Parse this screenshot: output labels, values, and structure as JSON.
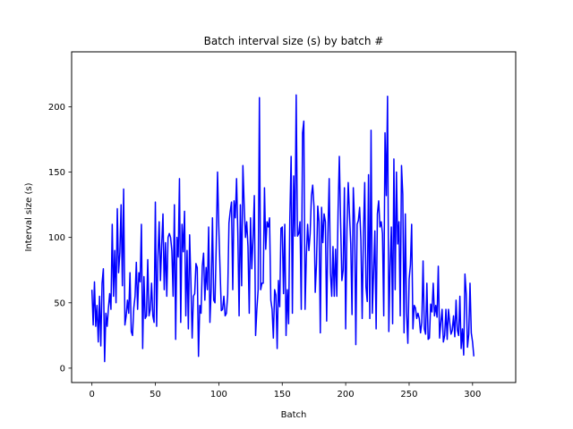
{
  "colors": {
    "line": "#0000ff",
    "axes": "#000000",
    "background": "#ffffff"
  },
  "chart_data": {
    "type": "line",
    "title": "Batch interval size (s) by batch #",
    "xlabel": "Batch",
    "ylabel": "Interval size (s)",
    "xlim": [
      -16,
      334
    ],
    "ylim": [
      -11,
      242
    ],
    "xticks": [
      0,
      50,
      100,
      150,
      200,
      250,
      300
    ],
    "yticks": [
      0,
      50,
      100,
      150,
      200
    ],
    "grid": false,
    "legend": false,
    "series": [
      {
        "values": [
          60,
          33,
          66,
          32,
          48,
          20,
          55,
          17,
          65,
          76,
          5,
          42,
          32,
          46,
          57,
          45,
          110,
          55,
          90,
          50,
          122,
          73,
          88,
          125,
          63,
          137,
          33,
          40,
          52,
          42,
          73,
          28,
          25,
          46,
          55,
          81,
          45,
          73,
          66,
          110,
          15,
          70,
          38,
          40,
          83,
          40,
          45,
          65,
          40,
          35,
          127,
          32,
          85,
          112,
          67,
          95,
          118,
          60,
          96,
          55,
          100,
          103,
          100,
          90,
          55,
          125,
          22,
          100,
          85,
          145,
          35,
          110,
          89,
          120,
          40,
          90,
          30,
          102,
          66,
          23,
          55,
          57,
          80,
          77,
          9,
          48,
          42,
          78,
          88,
          52,
          77,
          60,
          108,
          35,
          61,
          115,
          52,
          50,
          95,
          150,
          108,
          75,
          44,
          45,
          55,
          40,
          42,
          56,
          111,
          120,
          127,
          60,
          128,
          115,
          145,
          103,
          40,
          125,
          63,
          155,
          125,
          100,
          112,
          93,
          42,
          115,
          76,
          100,
          132,
          25,
          45,
          60,
          207,
          60,
          65,
          65,
          138,
          91,
          112,
          108,
          115,
          52,
          45,
          23,
          60,
          56,
          15,
          67,
          47,
          107,
          108,
          57,
          110,
          25,
          60,
          34,
          115,
          162,
          42,
          147,
          101,
          209,
          101,
          103,
          112,
          45,
          180,
          189,
          45,
          86,
          110,
          90,
          103,
          132,
          140,
          124,
          58,
          80,
          124,
          112,
          27,
          123,
          96,
          118,
          112,
          36,
          103,
          145,
          73,
          55,
          93,
          55,
          91,
          55,
          120,
          162,
          112,
          67,
          75,
          138,
          30,
          106,
          142,
          118,
          95,
          41,
          138,
          112,
          18,
          110,
          113,
          123,
          98,
          38,
          103,
          142,
          62,
          51,
          148,
          38,
          182,
          42,
          73,
          105,
          30,
          118,
          128,
          108,
          112,
          103,
          40,
          180,
          132,
          208,
          28,
          78,
          108,
          34,
          160,
          60,
          150,
          95,
          112,
          40,
          155,
          133,
          27,
          118,
          42,
          19,
          68,
          79,
          110,
          30,
          48,
          46,
          38,
          42,
          38,
          27,
          35,
          82,
          30,
          26,
          65,
          22,
          23,
          49,
          43,
          65,
          40,
          48,
          39,
          78,
          23,
          35,
          45,
          20,
          25,
          45,
          22,
          45,
          35,
          26,
          29,
          40,
          24,
          52,
          29,
          25,
          55,
          15,
          30,
          10,
          72,
          57,
          16,
          26,
          65,
          27,
          20,
          9
        ]
      }
    ]
  }
}
